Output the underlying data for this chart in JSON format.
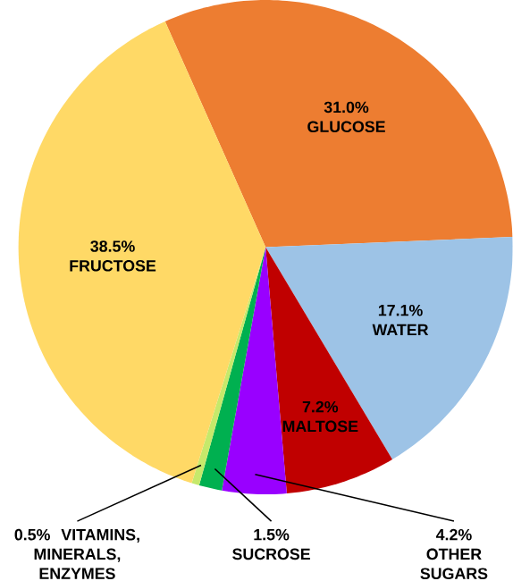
{
  "chart_data": {
    "type": "pie",
    "categories": [
      "GLUCOSE",
      "WATER",
      "MALTOSE",
      "OTHER SUGARS",
      "SUCROSE",
      "VITAMINS, MINERALS, ENZYMES",
      "FRUCTOSE"
    ],
    "values": [
      31.0,
      17.1,
      7.2,
      4.2,
      1.5,
      0.5,
      38.5
    ],
    "value_labels": [
      "31.0%",
      "17.1%",
      "7.2%",
      "4.2%",
      "1.5%",
      "0.5%",
      "38.5%"
    ],
    "colors": [
      "#ed7d31",
      "#9dc3e6",
      "#c00000",
      "#9900ff",
      "#00b050",
      "#c6e96b",
      "#ffd966"
    ]
  }
}
